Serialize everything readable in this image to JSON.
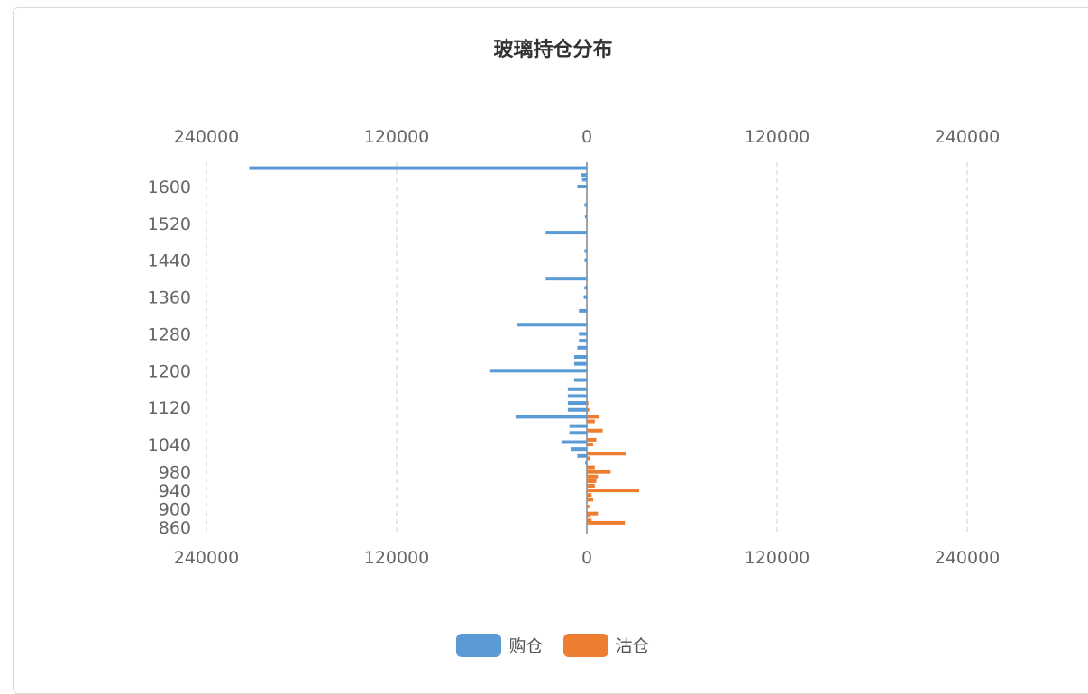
{
  "chart_data": {
    "type": "bar",
    "title": "玻璃持仓分布",
    "orientation": "horizontal",
    "x_ticks": [
      "240000",
      "120000",
      "0",
      "120000",
      "240000"
    ],
    "y_ticks": [
      "1600",
      "1520",
      "1440",
      "1360",
      "1280",
      "1200",
      "1120",
      "1040",
      "980",
      "940",
      "900",
      "860"
    ],
    "xlim": [
      -240000,
      240000
    ],
    "grid": true,
    "legend_position": "bottom",
    "series": [
      {
        "name": "购仓",
        "color": "#5b9bd5",
        "points": [
          [
            1640,
            -213000
          ],
          [
            1625,
            -4000
          ],
          [
            1615,
            -3000
          ],
          [
            1600,
            -6000
          ],
          [
            1560,
            -1500
          ],
          [
            1535,
            -1200
          ],
          [
            1500,
            -26000
          ],
          [
            1460,
            -1500
          ],
          [
            1440,
            -1500
          ],
          [
            1400,
            -26000
          ],
          [
            1380,
            -1500
          ],
          [
            1360,
            -2000
          ],
          [
            1330,
            -5000
          ],
          [
            1300,
            -44000
          ],
          [
            1280,
            -5000
          ],
          [
            1265,
            -5000
          ],
          [
            1250,
            -6000
          ],
          [
            1230,
            -8000
          ],
          [
            1215,
            -8000
          ],
          [
            1200,
            -61000
          ],
          [
            1180,
            -8000
          ],
          [
            1160,
            -12000
          ],
          [
            1145,
            -12000
          ],
          [
            1130,
            -12000
          ],
          [
            1115,
            -12000
          ],
          [
            1100,
            -45000
          ],
          [
            1080,
            -11000
          ],
          [
            1065,
            -11000
          ],
          [
            1045,
            -16000
          ],
          [
            1030,
            -10000
          ],
          [
            1015,
            -6000
          ],
          [
            1000,
            -1000
          ]
        ]
      },
      {
        "name": "沽仓",
        "color": "#ed7d31",
        "points": [
          [
            1130,
            1000
          ],
          [
            1115,
            1500
          ],
          [
            1100,
            8000
          ],
          [
            1090,
            5000
          ],
          [
            1070,
            10000
          ],
          [
            1050,
            6000
          ],
          [
            1040,
            4000
          ],
          [
            1020,
            25000
          ],
          [
            1010,
            2000
          ],
          [
            990,
            5000
          ],
          [
            980,
            15000
          ],
          [
            970,
            7000
          ],
          [
            960,
            6000
          ],
          [
            950,
            5000
          ],
          [
            940,
            33000
          ],
          [
            930,
            3000
          ],
          [
            920,
            4000
          ],
          [
            905,
            1500
          ],
          [
            890,
            7000
          ],
          [
            885,
            2000
          ],
          [
            875,
            3000
          ],
          [
            870,
            24000
          ]
        ]
      }
    ]
  }
}
